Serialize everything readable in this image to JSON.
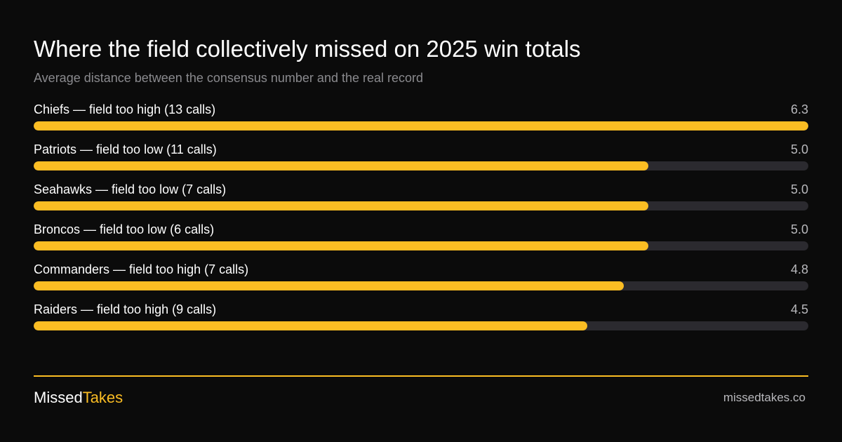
{
  "header": {
    "title": "Where the field collectively missed on 2025 win totals",
    "subtitle": "Average distance between the consensus number and the real record"
  },
  "chart_data": {
    "type": "bar",
    "orientation": "horizontal",
    "title": "Where the field collectively missed on 2025 win totals",
    "subtitle": "Average distance between the consensus number and the real record",
    "categories": [
      "Chiefs — field too high (13 calls)",
      "Patriots — field too low (11 calls)",
      "Seahawks — field too low (7 calls)",
      "Broncos — field too low (6 calls)",
      "Commanders — field too high (7 calls)",
      "Raiders — field too high (9 calls)"
    ],
    "values": [
      6.3,
      5.0,
      5.0,
      5.0,
      4.8,
      4.5
    ],
    "value_labels": [
      "6.3",
      "5.0",
      "5.0",
      "5.0",
      "4.8",
      "4.5"
    ],
    "xlim": [
      0,
      6.3
    ],
    "grid": false,
    "legend": "none",
    "colors": {
      "bar": "#fbbd23",
      "track": "#2b2a2f"
    }
  },
  "footer": {
    "brand_part1": "Missed",
    "brand_part2": "Takes",
    "website": "missedtakes.co"
  },
  "colors": {
    "background": "#0b0b0b",
    "accent": "#fbbd23",
    "muted_text": "#8a8a8e"
  }
}
